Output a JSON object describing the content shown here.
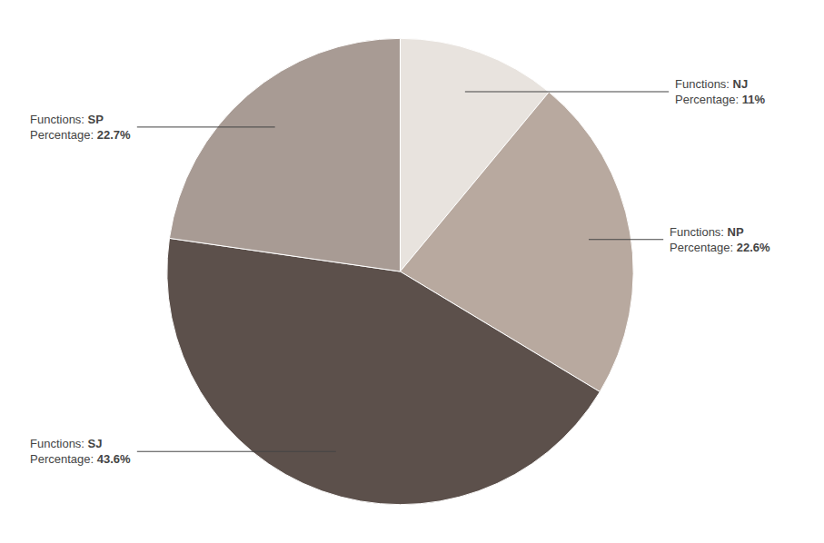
{
  "chart_data": {
    "type": "pie",
    "categories": [
      "NJ",
      "NP",
      "SJ",
      "SP"
    ],
    "values": [
      11.0,
      22.6,
      43.6,
      22.7
    ],
    "value_labels": [
      "11%",
      "22.6%",
      "43.6%",
      "22.7%"
    ],
    "colors": [
      "#e8e3de",
      "#b8a99f",
      "#5c504b",
      "#a89b94"
    ],
    "annotations": [
      "Functions: ",
      "Percentage: "
    ]
  }
}
